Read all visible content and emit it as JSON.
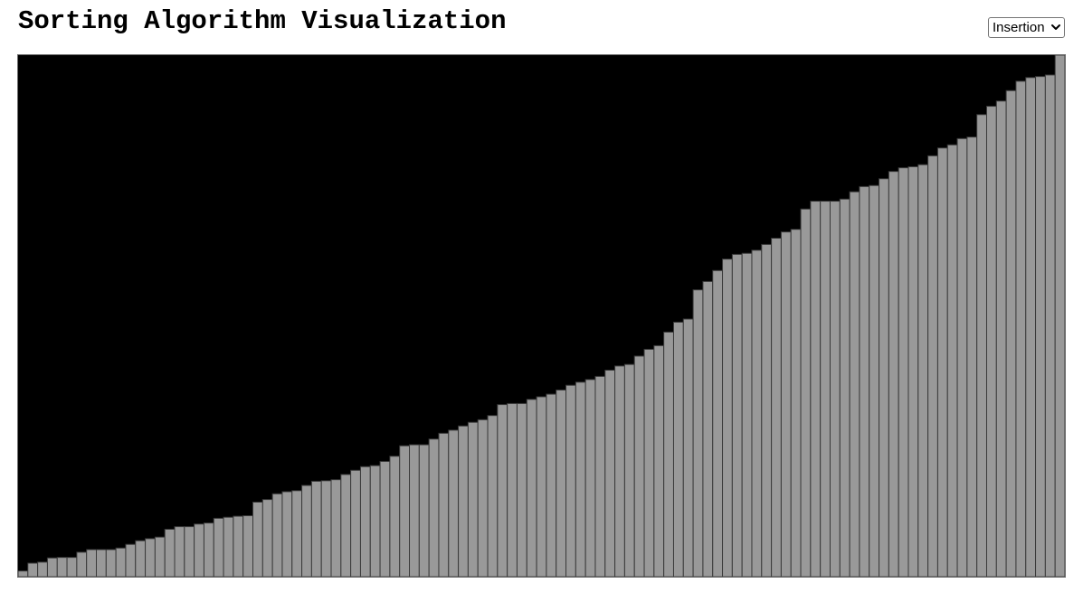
{
  "page": {
    "title": "Sorting Algorithm Visualization"
  },
  "algorithm_select": {
    "selected": "Insertion",
    "icon": "chevron-down-icon"
  },
  "colors": {
    "canvas_background": "#000000",
    "bar_fill": "#999999",
    "bar_stroke": "#3a3a3a"
  },
  "chart_data": {
    "type": "bar",
    "xlabel": "",
    "ylabel": "",
    "ylim": [
      0,
      100
    ],
    "grid": false,
    "values": [
      1.1,
      2.6,
      2.8,
      3.6,
      3.7,
      3.7,
      4.7,
      5.2,
      5.2,
      5.2,
      5.5,
      6.2,
      6.9,
      7.3,
      7.6,
      9.1,
      9.6,
      9.6,
      10.1,
      10.3,
      11.2,
      11.4,
      11.6,
      11.7,
      14.3,
      14.8,
      15.9,
      16.3,
      16.5,
      17.5,
      18.3,
      18.4,
      18.6,
      19.6,
      20.4,
      21.1,
      21.3,
      22.1,
      23.1,
      25.1,
      25.3,
      25.3,
      26.4,
      27.5,
      28.1,
      28.9,
      29.6,
      30.1,
      30.9,
      33.0,
      33.2,
      33.2,
      34.0,
      34.5,
      35.0,
      35.8,
      36.7,
      37.3,
      37.8,
      38.4,
      39.6,
      40.4,
      40.7,
      42.3,
      43.6,
      44.3,
      46.9,
      48.8,
      49.4,
      55.0,
      56.6,
      58.7,
      60.9,
      61.8,
      62.0,
      62.6,
      63.7,
      64.9,
      66.1,
      66.6,
      70.5,
      72.0,
      72.0,
      72.0,
      72.4,
      73.8,
      74.8,
      75.0,
      76.3,
      77.7,
      78.4,
      78.6,
      79.0,
      80.7,
      82.2,
      82.8,
      84.0,
      84.3,
      88.6,
      90.2,
      91.2,
      93.2,
      95.0,
      95.7,
      95.9,
      96.2,
      100.0
    ]
  }
}
